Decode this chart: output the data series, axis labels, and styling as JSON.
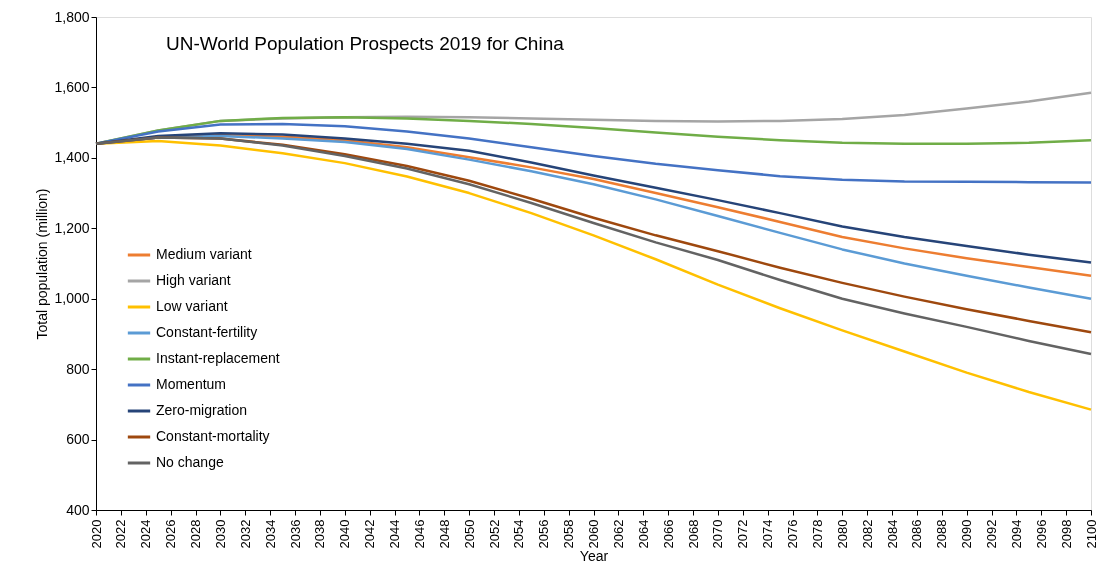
{
  "chart_data": {
    "type": "line",
    "title": "UN-World Population Prospects 2019 for China",
    "xlabel": "Year",
    "ylabel": "Total population (million)",
    "x": [
      2020,
      2025,
      2030,
      2035,
      2040,
      2045,
      2050,
      2055,
      2060,
      2065,
      2070,
      2075,
      2080,
      2085,
      2090,
      2095,
      2100
    ],
    "series": [
      {
        "name": "Medium variant",
        "color": "#ed7d31",
        "values": [
          1440,
          1458,
          1465,
          1460,
          1450,
          1430,
          1402,
          1373,
          1340,
          1300,
          1260,
          1218,
          1175,
          1143,
          1115,
          1090,
          1065
        ]
      },
      {
        "name": "High variant",
        "color": "#a5a5a5",
        "values": [
          1440,
          1478,
          1505,
          1512,
          1515,
          1517,
          1515,
          1512,
          1508,
          1505,
          1503,
          1505,
          1510,
          1522,
          1540,
          1560,
          1585
        ]
      },
      {
        "name": "Low variant",
        "color": "#ffc000",
        "values": [
          1440,
          1448,
          1435,
          1413,
          1385,
          1347,
          1300,
          1243,
          1180,
          1112,
          1040,
          973,
          910,
          850,
          790,
          735,
          685
        ]
      },
      {
        "name": "Constant-fertility",
        "color": "#5b9bd5",
        "values": [
          1440,
          1458,
          1462,
          1455,
          1445,
          1425,
          1395,
          1362,
          1325,
          1282,
          1235,
          1187,
          1140,
          1100,
          1065,
          1032,
          1000
        ]
      },
      {
        "name": "Instant-replacement",
        "color": "#70ad47",
        "values": [
          1440,
          1478,
          1505,
          1513,
          1515,
          1512,
          1505,
          1496,
          1485,
          1472,
          1460,
          1450,
          1443,
          1440,
          1440,
          1443,
          1450
        ]
      },
      {
        "name": "Momentum",
        "color": "#4472c4",
        "values": [
          1440,
          1475,
          1495,
          1496,
          1490,
          1475,
          1455,
          1430,
          1405,
          1383,
          1365,
          1348,
          1338,
          1333,
          1332,
          1331,
          1330
        ]
      },
      {
        "name": "Zero-migration",
        "color": "#264478",
        "values": [
          1440,
          1462,
          1470,
          1466,
          1455,
          1440,
          1420,
          1387,
          1350,
          1315,
          1280,
          1243,
          1205,
          1175,
          1150,
          1125,
          1103
        ]
      },
      {
        "name": "Constant-mortality",
        "color": "#9e480e",
        "values": [
          1440,
          1458,
          1455,
          1437,
          1410,
          1377,
          1335,
          1284,
          1230,
          1180,
          1135,
          1088,
          1045,
          1006,
          970,
          937,
          905
        ]
      },
      {
        "name": "No change",
        "color": "#636363",
        "values": [
          1440,
          1458,
          1455,
          1435,
          1405,
          1370,
          1325,
          1272,
          1215,
          1160,
          1110,
          1053,
          1000,
          958,
          920,
          880,
          843
        ]
      }
    ],
    "xlim": [
      2020,
      2100
    ],
    "xticks": [
      2020,
      2022,
      2024,
      2026,
      2028,
      2030,
      2032,
      2034,
      2036,
      2038,
      2040,
      2042,
      2044,
      2046,
      2048,
      2050,
      2052,
      2054,
      2056,
      2058,
      2060,
      2062,
      2064,
      2066,
      2068,
      2070,
      2072,
      2074,
      2076,
      2078,
      2080,
      2082,
      2084,
      2086,
      2088,
      2090,
      2092,
      2094,
      2096,
      2098,
      2100
    ],
    "ylim": [
      400,
      1800
    ],
    "yticks": [
      400,
      600,
      800,
      {
        "value": 1000,
        "label": "1,000"
      },
      {
        "value": 1200,
        "label": "1,200"
      },
      {
        "value": 1400,
        "label": "1,400"
      },
      {
        "value": 1600,
        "label": "1,600"
      },
      {
        "value": 1800,
        "label": "1,800"
      }
    ],
    "grid": false,
    "legend": "left",
    "marker": "none",
    "line_style": "solid"
  }
}
